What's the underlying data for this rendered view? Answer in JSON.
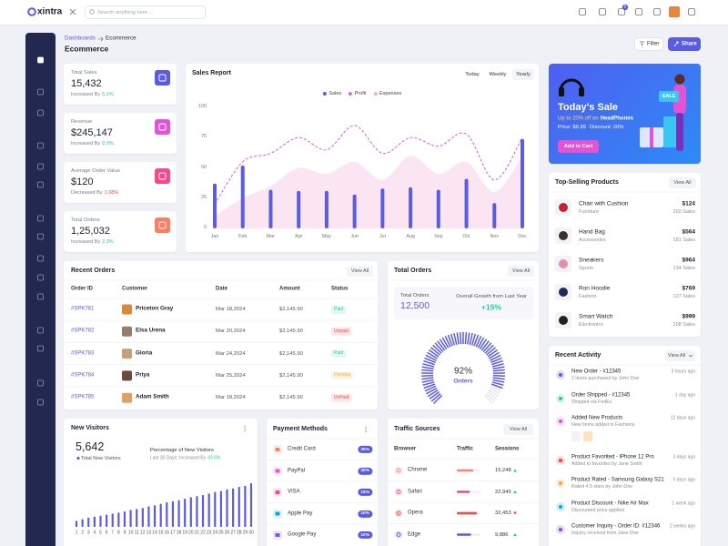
{
  "header": {
    "logo": "xintra",
    "search_placeholder": "Search anything here ...",
    "cart_badge": "5"
  },
  "breadcrumb": [
    "Dashboards",
    "Ecommerce"
  ],
  "page_title": "Ecommerce",
  "actions": [
    "Filter",
    "Share"
  ],
  "stats": [
    {
      "label": "Total Sales",
      "value": "15,432",
      "trend_text": "Increased By",
      "trend": "5.1%",
      "trend_color": "#21ce9c",
      "icon_color": "#5b5ce6"
    },
    {
      "label": "Revenue",
      "value": "$245,147",
      "trend_text": "Increased By",
      "trend": "0.0%",
      "trend_color": "#21ce9c",
      "icon_color": "#e354d4"
    },
    {
      "label": "Average Order Value",
      "value": "$120",
      "trend_text": "Decreased By",
      "trend": "1.08%",
      "trend_color": "#fb4242",
      "icon_color": "#f5488d"
    },
    {
      "label": "Total Orders",
      "value": "1,25,032",
      "trend_text": "Increased By",
      "trend": "2.3%",
      "trend_color": "#21ce9c",
      "icon_color": "#ff7e5f"
    }
  ],
  "sales_report_tabs": [
    "Today",
    "Weekly",
    "Yearly"
  ],
  "chart_data": [
    {
      "type": "combo",
      "title": "Sales Report",
      "categories": [
        "Jan",
        "Feb",
        "Mar",
        "Apr",
        "May",
        "Jun",
        "Jul",
        "Aug",
        "Sep",
        "Oct",
        "Nov",
        "Dec"
      ],
      "series": [
        {
          "name": "Sales",
          "type": "bar",
          "color": "#5b5ce6",
          "values": [
            37,
            52,
            32,
            31,
            31,
            28,
            33,
            34,
            32,
            41,
            21,
            74
          ]
        },
        {
          "name": "Profit",
          "type": "line",
          "color": "#d36ed6",
          "values": [
            20,
            55,
            62,
            75,
            65,
            85,
            62,
            75,
            68,
            78,
            40,
            75
          ]
        },
        {
          "name": "Expenses",
          "type": "area",
          "color": "#fbe1f1",
          "values": [
            10,
            25,
            35,
            50,
            45,
            55,
            40,
            60,
            45,
            55,
            30,
            60
          ]
        }
      ],
      "ylim": [
        0,
        100
      ],
      "yticks": [
        0,
        25,
        50,
        75,
        100
      ],
      "grid": false,
      "legend": "top"
    },
    {
      "type": "gauge",
      "categories": [
        "Orders"
      ],
      "values": [
        92
      ],
      "value_labels": [
        "92%"
      ],
      "ylim": [
        0,
        100
      ],
      "color": "#5b5ce6"
    },
    {
      "type": "bar",
      "title": "New Visitors",
      "categories": [
        "1",
        "2",
        "3",
        "4",
        "5",
        "6",
        "7",
        "8",
        "9",
        "10",
        "11",
        "12",
        "13",
        "14",
        "15",
        "16",
        "17",
        "18",
        "19",
        "20",
        "21",
        "22",
        "23",
        "24",
        "25",
        "26",
        "27",
        "28",
        "29",
        "30"
      ],
      "values": [
        12,
        15,
        18,
        20,
        22,
        24,
        26,
        28,
        30,
        33,
        35,
        37,
        40,
        42,
        45,
        48,
        50,
        52,
        55,
        58,
        60,
        62,
        65,
        68,
        70,
        73,
        75,
        78,
        80,
        85
      ],
      "color": "#5b5ce6"
    }
  ],
  "promo": {
    "title": "Today's Sale",
    "offer_prefix": "Up to 20% off on",
    "offer_product": "HeadPhones",
    "price": "Price: $9.99",
    "discount": "Discount: 20%",
    "button": "Add to Cart",
    "badge": "SALE"
  },
  "top_selling": {
    "title": "Top-Selling Products",
    "action": "View All",
    "items": [
      {
        "name": "Chair with Cushion",
        "category": "Furniture",
        "price": "$124",
        "sales": "260 Sales",
        "color": "#c2242f"
      },
      {
        "name": "Hand Bag",
        "category": "Accessories",
        "price": "$564",
        "sales": "181 Sales",
        "color": "#3a3030"
      },
      {
        "name": "Sneakers",
        "category": "Sports",
        "price": "$964",
        "sales": "134 Sales",
        "color": "#e58fb0"
      },
      {
        "name": "Ron Hoodie",
        "category": "Fashion",
        "price": "$769",
        "sales": "127 Sales",
        "color": "#1f2a5a"
      },
      {
        "name": "Smart Watch",
        "category": "Electronics",
        "price": "$999",
        "sales": "108 Sales",
        "color": "#222222"
      }
    ]
  },
  "recent_orders": {
    "title": "Recent Orders",
    "action": "View All",
    "columns": [
      "Order ID",
      "Customer",
      "Date",
      "Amount",
      "Status"
    ],
    "rows": [
      {
        "id": "#SPK781",
        "customer": "Priceton Gray",
        "date": "Mar 18,2024",
        "amount": "$2,145.90",
        "status": "Paid",
        "status_color": "#21ce9c"
      },
      {
        "id": "#SPK782",
        "customer": "Elsa Urena",
        "date": "Mar 20,2024",
        "amount": "$2,145.90",
        "status": "Unpaid",
        "status_color": "#fb4242"
      },
      {
        "id": "#SPK783",
        "customer": "Gloria",
        "date": "Mar 24,2024",
        "amount": "$2,145.90",
        "status": "Paid",
        "status_color": "#21ce9c"
      },
      {
        "id": "#SPK784",
        "customer": "Priya",
        "date": "Mar 25,2024",
        "amount": "$2,145.90",
        "status": "Pending",
        "status_color": "#ffa43a"
      },
      {
        "id": "#SPK785",
        "customer": "Adam Smith",
        "date": "Mar 18,2024",
        "amount": "$2,145.90",
        "status": "UnPaid",
        "status_color": "#fb4242"
      }
    ]
  },
  "total_orders": {
    "title": "Total Orders",
    "action": "View All",
    "label": "Total Orders",
    "value": "12,500",
    "growth_label": "Overall Growth from Last Year",
    "growth": "+15%"
  },
  "recent_activity": {
    "title": "Recent Activity",
    "action": "View All",
    "items": [
      {
        "title": "New Order - #12345",
        "detail": "2 items purchased by John Doe",
        "time": "3 hours ago",
        "color": "#5b5ce6"
      },
      {
        "title": "Order Shipped - #12345",
        "detail": "Shipped via FedEx",
        "time": "1 day ago",
        "color": "#21ce9c"
      },
      {
        "title": "Added New Products",
        "detail": "New items added in Fashions",
        "time": "12 days ago",
        "color": "#e354d4"
      },
      {
        "title": "Product Favorited - iPhone 12 Pro",
        "detail": "Added to favorites by Jane Smith",
        "time": "3 days ago",
        "color": "#fb4242"
      },
      {
        "title": "Product Rated - Samsung Galaxy S21",
        "detail": "Rated 4.5 stars by John Doe",
        "time": "5 days ago",
        "color": "#ffa43a"
      },
      {
        "title": "Product Discount - Nike Air Max",
        "detail": "Discounted price applied",
        "time": "1 week ago",
        "color": "#0ca3e7"
      },
      {
        "title": "Customer Inquiry - Order ID: #12346",
        "detail": "Inquiry received from Jane Doe",
        "time": "2 weeks ago",
        "color": "#7b4ff0"
      }
    ]
  },
  "new_visitors": {
    "total": "5,642",
    "total_label": "Total New Visitors",
    "percent_label": "Percentage of New Visitors",
    "period_text": "Last 30 Days: Increased By",
    "period_change": "43.6%"
  },
  "payment_methods": {
    "title": "Payment Methods",
    "items": [
      {
        "name": "Credit Card",
        "share": "35%",
        "color": "#ff7e5f"
      },
      {
        "name": "PayPal",
        "share": "30%",
        "color": "#e354d4"
      },
      {
        "name": "VISA",
        "share": "15%",
        "color": "#f5488d"
      },
      {
        "name": "Apple Pay",
        "share": "10%",
        "color": "#0ca3e7"
      },
      {
        "name": "Google Pay",
        "share": "10%",
        "color": "#7b4ff0"
      }
    ]
  },
  "traffic_sources": {
    "title": "Traffic Sources",
    "action": "View All",
    "columns": [
      "Browser",
      "Traffic",
      "Sessions"
    ],
    "rows": [
      {
        "browser": "Chrome",
        "traffic": 70,
        "sessions": "15,248",
        "trend": "up",
        "color": "#ff7e7e"
      },
      {
        "browser": "Safari",
        "traffic": 55,
        "sessions": "22,945",
        "trend": "up",
        "color": "#f5488d"
      },
      {
        "browser": "Opera",
        "traffic": 85,
        "sessions": "32,453",
        "trend": "down",
        "color": "#fb4242"
      },
      {
        "browser": "Edge",
        "traffic": 60,
        "sessions": "9,886",
        "trend": "up",
        "color": "#5b5ce6"
      }
    ]
  }
}
